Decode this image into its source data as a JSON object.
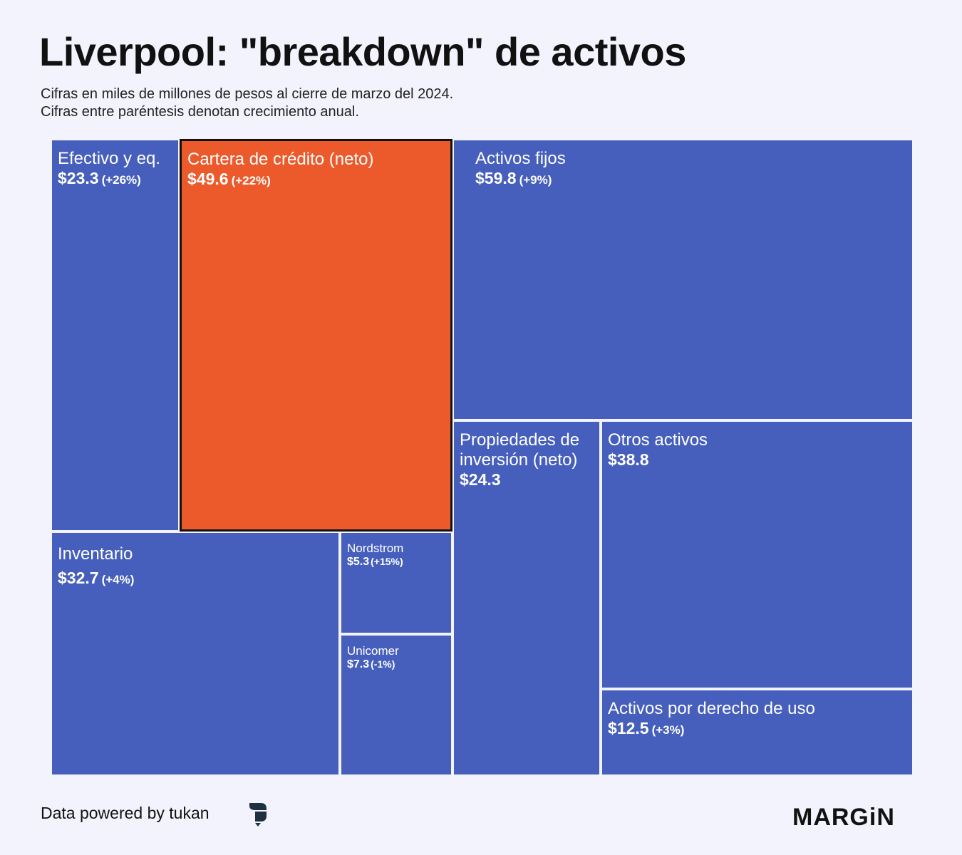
{
  "header": {
    "title": "Liverpool: \"breakdown\" de activos",
    "subtitle_1": "Cifras en miles de millones de pesos al cierre de marzo del 2024.",
    "subtitle_2": "Cifras entre paréntesis denotan crecimiento anual."
  },
  "colors": {
    "background": "#f3f3fd",
    "tile": "#465fbd",
    "highlight": "#ec5a2b",
    "highlight_border": "#111111"
  },
  "chart_data": {
    "type": "treemap",
    "title": "Liverpool: \"breakdown\" de activos",
    "unit": "miles de millones de pesos",
    "items": [
      {
        "id": "efectivo",
        "name": "Efectivo y eq.",
        "value": 23.3,
        "value_label": "$23.3",
        "growth": "(+26%)",
        "highlight": false
      },
      {
        "id": "cartera",
        "name": "Cartera de crédito (neto)",
        "value": 49.6,
        "value_label": "$49.6",
        "growth": "(+22%)",
        "highlight": true
      },
      {
        "id": "activos-fijos",
        "name": "Activos fijos",
        "value": 59.8,
        "value_label": "$59.8",
        "growth": "(+9%)",
        "highlight": false
      },
      {
        "id": "inventario",
        "name": "Inventario",
        "value": 32.7,
        "value_label": "$32.7",
        "growth": "(+4%)",
        "highlight": false
      },
      {
        "id": "nordstrom",
        "name": "Nordstrom",
        "value": 5.3,
        "value_label": "$5.3",
        "growth": "(+15%)",
        "highlight": false
      },
      {
        "id": "unicomer",
        "name": "Unicomer",
        "value": 7.3,
        "value_label": "$7.3",
        "growth": "(-1%)",
        "highlight": false
      },
      {
        "id": "propiedades",
        "name": "Propiedades de inversión (neto)",
        "value": 24.3,
        "value_label": "$24.3",
        "growth": "",
        "highlight": false
      },
      {
        "id": "otros",
        "name": "Otros activos",
        "value": 38.8,
        "value_label": "$38.8",
        "growth": "",
        "highlight": false
      },
      {
        "id": "derecho-uso",
        "name": "Activos por derecho de uso",
        "value": 12.5,
        "value_label": "$12.5",
        "growth": "(+3%)",
        "highlight": false
      }
    ]
  },
  "footer": {
    "credit": "Data powered by tukan",
    "brand": "MARGiN"
  }
}
